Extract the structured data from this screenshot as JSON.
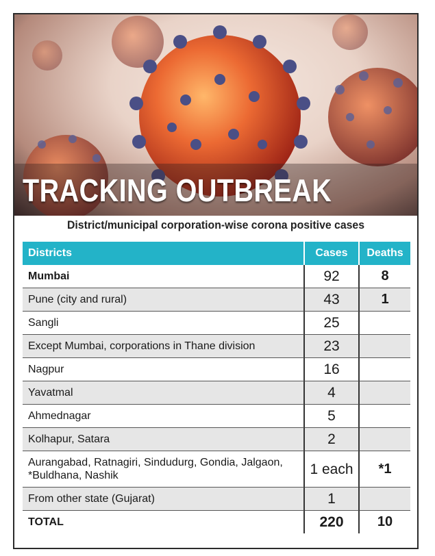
{
  "headline": "TRACKING OUTBREAK",
  "subtitle": "District/municipal corporation-wise corona positive cases",
  "table": {
    "headers": [
      "Districts",
      "Cases",
      "Deaths"
    ],
    "rows": [
      {
        "district": "Mumbai",
        "cases": "92",
        "deaths": "8"
      },
      {
        "district": "Pune (city and rural)",
        "cases": "43",
        "deaths": "1"
      },
      {
        "district": "Sangli",
        "cases": "25",
        "deaths": ""
      },
      {
        "district": "Except Mumbai, corporations in Thane division",
        "cases": "23",
        "deaths": ""
      },
      {
        "district": "Nagpur",
        "cases": "16",
        "deaths": ""
      },
      {
        "district": "Yavatmal",
        "cases": "4",
        "deaths": ""
      },
      {
        "district": "Ahmednagar",
        "cases": "5",
        "deaths": ""
      },
      {
        "district": "Kolhapur, Satara",
        "cases": "2",
        "deaths": ""
      },
      {
        "district": "Aurangabad, Ratnagiri, Sindudurg, Gondia, Jalgaon, *Buldhana, Nashik",
        "cases": "1 each",
        "deaths": "*1"
      },
      {
        "district": "From other state (Gujarat)",
        "cases": "1",
        "deaths": ""
      }
    ],
    "total": {
      "label": "TOTAL",
      "cases": "220",
      "deaths": "10"
    }
  },
  "colors": {
    "header_bg": "#23b3c8",
    "row_shade": "#e6e6e6",
    "virus_body": "#e2502a",
    "virus_spike": "#4a4f86"
  }
}
